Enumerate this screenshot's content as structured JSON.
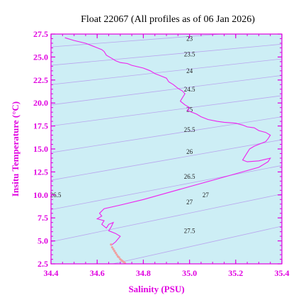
{
  "chart_data": {
    "type": "line",
    "title": "Float 22067  (All profiles as of 06 Jan 2026)",
    "xlabel": "Salinity (PSU)",
    "ylabel": "Insitu Temperature (°C)",
    "xlim": [
      34.4,
      35.4
    ],
    "ylim": [
      2.5,
      27.5
    ],
    "x_ticks": [
      "34.4",
      "34.6",
      "34.8",
      "35.0",
      "35.2",
      "35.4"
    ],
    "y_ticks": [
      "2.5",
      "5.0",
      "7.5",
      "10.0",
      "12.5",
      "15.0",
      "17.5",
      "20.0",
      "22.5",
      "25.0",
      "27.5"
    ],
    "grid": false,
    "colors": {
      "plot_background": "#cdeef5",
      "axis": "#e000e0",
      "profile": "#ee22ee",
      "deep_points": "#f0a0a0",
      "isopycnal": "#b9a6ee",
      "title": "#000000"
    },
    "isopycnals": [
      {
        "label": "23",
        "x": [
          34.4,
          35.4
        ],
        "y": [
          26.1,
          28.0
        ],
        "label_at": [
          35.0,
          27.0
        ]
      },
      {
        "label": "23.5",
        "x": [
          34.4,
          35.4
        ],
        "y": [
          24.1,
          26.4
        ],
        "label_at": [
          35.0,
          25.3
        ]
      },
      {
        "label": "24",
        "x": [
          34.4,
          35.4
        ],
        "y": [
          22.0,
          24.8
        ],
        "label_at": [
          35.0,
          23.5
        ]
      },
      {
        "label": "24.5",
        "x": [
          34.4,
          35.4
        ],
        "y": [
          19.8,
          23.0
        ],
        "label_at": [
          35.0,
          21.5
        ]
      },
      {
        "label": "25",
        "x": [
          34.4,
          35.4
        ],
        "y": [
          17.5,
          20.8
        ],
        "label_at": [
          35.0,
          19.3
        ]
      },
      {
        "label": "25.5",
        "x": [
          34.4,
          35.4
        ],
        "y": [
          14.6,
          18.5
        ],
        "label_at": [
          35.0,
          17.1
        ]
      },
      {
        "label": "26",
        "x": [
          34.4,
          35.4
        ],
        "y": [
          11.6,
          16.0
        ],
        "label_at": [
          35.0,
          14.7
        ]
      },
      {
        "label": "26.5",
        "x": [
          34.4,
          35.4
        ],
        "y": [
          8.4,
          13.2
        ],
        "label_at": [
          35.0,
          12.0
        ]
      },
      {
        "label": "27",
        "x": [
          34.4,
          35.4
        ],
        "y": [
          4.9,
          10.1
        ],
        "label_at": [
          35.0,
          9.2
        ]
      },
      {
        "label": "27.5",
        "x": [
          34.4,
          35.4
        ],
        "y": [
          1.0,
          6.6
        ],
        "label_at": [
          35.0,
          6.1
        ]
      }
    ],
    "extra_labels": [
      {
        "text": "26.5",
        "at": [
          34.42,
          10.0
        ]
      },
      {
        "text": "27",
        "at": [
          35.07,
          10.0
        ]
      }
    ],
    "series": [
      {
        "x": [
          34.46,
          34.5,
          34.55,
          34.58,
          34.6,
          34.62,
          34.63,
          34.64,
          34.66,
          34.68,
          34.7,
          34.73,
          34.75,
          34.8,
          34.83,
          34.85,
          34.87,
          34.9,
          34.91,
          34.93,
          34.95,
          34.97,
          34.98,
          34.97,
          34.96,
          34.98,
          35.0,
          34.99,
          35.03,
          35.05,
          35.08,
          35.12,
          35.15,
          35.2,
          35.23,
          35.25,
          35.28,
          35.3,
          35.33,
          35.35,
          35.34,
          35.33,
          35.3,
          35.28,
          35.26,
          35.25,
          35.24,
          35.23,
          35.25,
          35.3,
          35.35,
          35.34,
          35.3,
          35.2,
          35.1,
          35.0,
          34.9,
          34.8,
          34.7,
          34.63,
          34.61,
          34.62,
          34.6,
          34.63,
          34.62,
          34.64,
          34.65,
          34.67,
          34.66,
          34.65,
          34.68,
          34.7,
          34.69,
          34.68,
          34.66
        ],
        "y": [
          27.1,
          26.8,
          26.5,
          26.2,
          26.0,
          25.8,
          25.6,
          25.2,
          24.9,
          24.6,
          24.4,
          24.3,
          24.1,
          23.8,
          23.5,
          23.2,
          23.0,
          22.7,
          22.3,
          22.0,
          21.6,
          21.3,
          21.0,
          20.6,
          20.2,
          19.8,
          19.5,
          19.2,
          18.8,
          18.5,
          18.2,
          18.0,
          17.9,
          17.8,
          17.6,
          17.4,
          17.3,
          17.0,
          16.8,
          16.5,
          16.1,
          15.8,
          15.5,
          15.3,
          15.0,
          14.6,
          14.2,
          13.8,
          13.6,
          13.7,
          14.0,
          13.6,
          13.0,
          12.3,
          11.6,
          10.9,
          10.2,
          9.5,
          8.9,
          8.5,
          8.0,
          7.7,
          7.4,
          7.2,
          6.8,
          6.4,
          6.8,
          7.0,
          6.5,
          6.1,
          5.8,
          5.5,
          5.2,
          4.9,
          4.5
        ]
      },
      {
        "style": "points",
        "x": [
          34.66,
          34.665,
          34.67,
          34.675,
          34.68,
          34.685,
          34.69,
          34.695,
          34.7,
          34.705,
          34.71,
          34.715,
          34.72
        ],
        "y": [
          4.6,
          4.3,
          4.1,
          3.9,
          3.7,
          3.5,
          3.3,
          3.2,
          3.0,
          2.9,
          2.8,
          2.7,
          2.6
        ]
      }
    ]
  }
}
